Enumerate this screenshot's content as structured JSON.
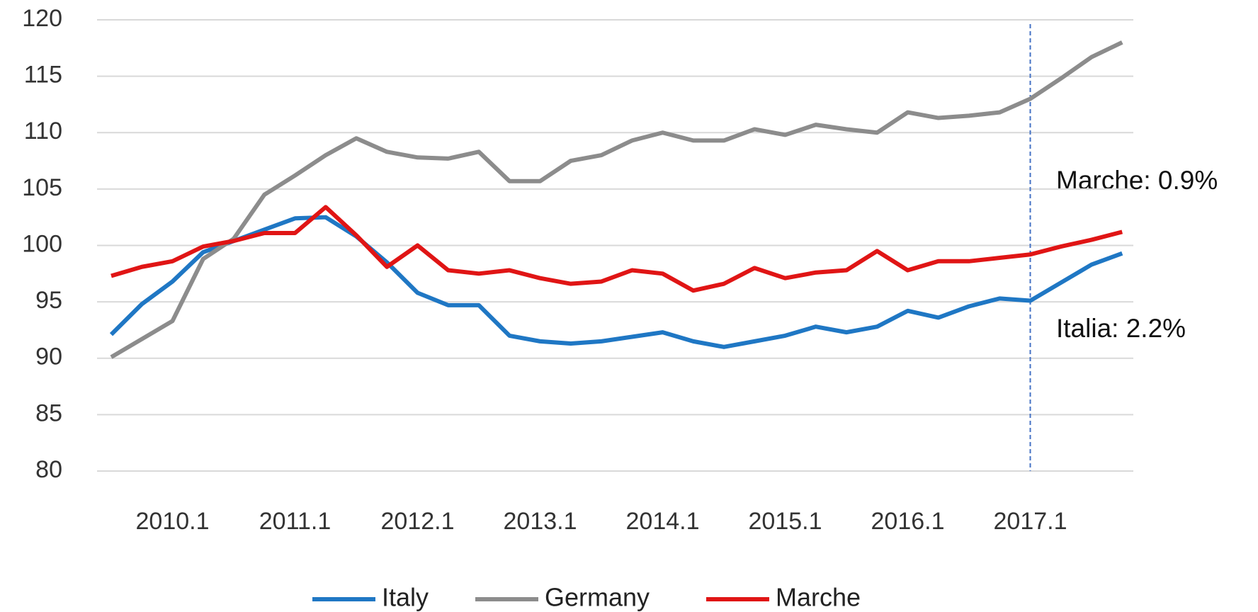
{
  "chart_data": {
    "type": "line",
    "categories": [
      null,
      null,
      "2010.1",
      null,
      null,
      null,
      "2011.1",
      null,
      null,
      null,
      "2012.1",
      null,
      null,
      null,
      "2013.1",
      null,
      null,
      null,
      "2014.1",
      null,
      null,
      null,
      "2015.1",
      null,
      null,
      null,
      "2016.1",
      null,
      null,
      null,
      "2017.1",
      null,
      null,
      null
    ],
    "series": [
      {
        "name": "Italy",
        "color": "#1f77c4",
        "values": [
          92.1,
          94.8,
          96.8,
          99.4,
          100.4,
          101.4,
          102.4,
          102.5,
          100.8,
          98.5,
          95.8,
          94.7,
          94.7,
          92.0,
          91.5,
          91.3,
          91.5,
          91.9,
          92.3,
          91.5,
          91.0,
          91.5,
          92.0,
          92.8,
          92.3,
          92.8,
          94.2,
          93.6,
          94.6,
          95.3,
          95.1,
          96.7,
          98.3,
          99.3
        ]
      },
      {
        "name": "Germany",
        "color": "#8c8c8c",
        "values": [
          90.1,
          91.7,
          93.3,
          98.8,
          100.6,
          104.5,
          106.2,
          108.0,
          109.5,
          108.3,
          107.8,
          107.7,
          108.3,
          105.7,
          105.7,
          107.5,
          108.0,
          109.3,
          110.0,
          109.3,
          109.3,
          110.3,
          109.8,
          110.7,
          110.3,
          110.0,
          111.8,
          111.3,
          111.5,
          111.8,
          113.0,
          114.8,
          116.7,
          118.0
        ]
      },
      {
        "name": "Marche",
        "color": "#e01515",
        "values": [
          97.3,
          98.1,
          98.6,
          99.9,
          100.4,
          101.1,
          101.1,
          103.4,
          100.9,
          98.1,
          100.0,
          97.8,
          97.5,
          97.8,
          97.1,
          96.6,
          96.8,
          97.8,
          97.5,
          96.0,
          96.6,
          98.0,
          97.1,
          97.6,
          97.8,
          99.5,
          97.8,
          98.6,
          98.6,
          98.9,
          99.2,
          99.9,
          100.5,
          101.2
        ]
      }
    ],
    "ylim": [
      80,
      120
    ],
    "yticks": [
      80,
      85,
      90,
      95,
      100,
      105,
      110,
      115,
      120
    ],
    "grid": true,
    "legend": "bottom",
    "vline": {
      "category_index": 30,
      "color": "#4472c4"
    },
    "annotations": [
      "Marche: 0.9%",
      "Italia: 2.2%"
    ]
  }
}
